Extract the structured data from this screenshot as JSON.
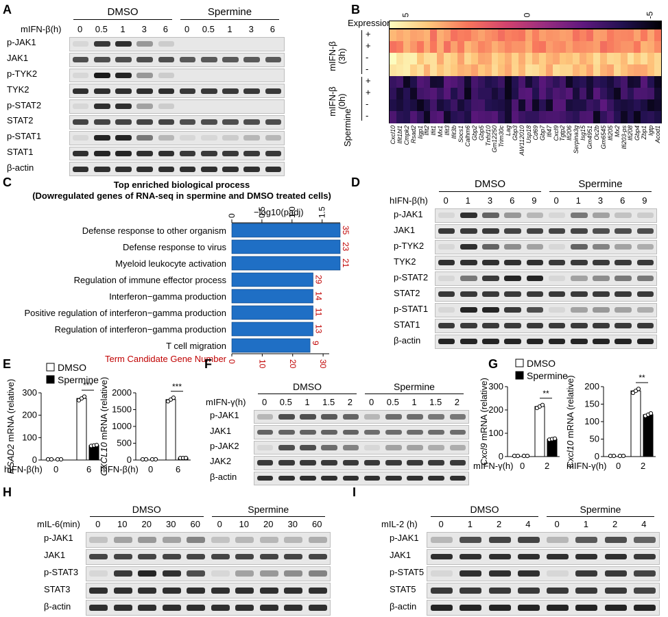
{
  "A": {
    "letter": "A",
    "treatment_label": "mIFN-β(h)",
    "groups": [
      "DMSO",
      "Spermine"
    ],
    "timepoints": [
      "0",
      "0.5",
      "1",
      "3",
      "6",
      "0",
      "0.5",
      "1",
      "3",
      "6"
    ],
    "rows": [
      {
        "label": "p-JAK1",
        "levels": [
          0.05,
          0.8,
          0.85,
          0.35,
          0.1,
          0,
          0,
          0,
          0,
          0
        ]
      },
      {
        "label": "JAK1",
        "levels": [
          0.7,
          0.7,
          0.7,
          0.7,
          0.7,
          0.65,
          0.65,
          0.65,
          0.65,
          0.65
        ]
      },
      {
        "label": "p-TYK2",
        "levels": [
          0.05,
          0.95,
          0.9,
          0.35,
          0.1,
          0,
          0,
          0,
          0,
          0
        ]
      },
      {
        "label": "TYK2",
        "levels": [
          0.85,
          0.85,
          0.85,
          0.85,
          0.85,
          0.8,
          0.8,
          0.8,
          0.8,
          0.8
        ]
      },
      {
        "label": "p-STAT2",
        "levels": [
          0.05,
          0.85,
          0.85,
          0.3,
          0.1,
          0,
          0,
          0,
          0,
          0
        ]
      },
      {
        "label": "STAT2",
        "levels": [
          0.75,
          0.75,
          0.75,
          0.75,
          0.75,
          0.7,
          0.7,
          0.7,
          0.7,
          0.7
        ]
      },
      {
        "label": "p-STAT1",
        "levels": [
          0.05,
          0.9,
          0.9,
          0.5,
          0.2,
          0.05,
          0.05,
          0.1,
          0.2,
          0.2
        ]
      },
      {
        "label": "STAT1",
        "levels": [
          0.85,
          0.9,
          0.9,
          0.85,
          0.85,
          0.8,
          0.8,
          0.8,
          0.8,
          0.8
        ]
      },
      {
        "label": "β-actin",
        "levels": [
          0.85,
          0.85,
          0.85,
          0.85,
          0.85,
          0.85,
          0.85,
          0.85,
          0.85,
          0.85
        ]
      }
    ]
  },
  "B": {
    "letter": "B",
    "legend_label": "Expression",
    "legend_ticks": [
      "5",
      "0",
      "-5"
    ],
    "row_group_labels": [
      "mIFN-β\n(3h)",
      "mIFN-β\n(0h)"
    ],
    "row_signs": [
      "+",
      "+",
      "-",
      "-",
      "+",
      "+",
      "-",
      "-"
    ],
    "column_group_label": "Spermine",
    "genes": [
      "Cxcl10",
      "Ifit1bl1",
      "Cmpk2",
      "Rsad2",
      "Iigp1",
      "Ifit2",
      "Ifit1",
      "Mx1",
      "Ifit3",
      "Ifit3b",
      "Socs1",
      "Calhm6",
      "Gbp2",
      "Gbp5",
      "Tnfsf10",
      "Gm12250",
      "Trim30c",
      "Lag",
      "Gbp3",
      "AW112010",
      "Usp18",
      "Cd69",
      "Gbp7",
      "Ifi47",
      "Cxcl9",
      "Tgtp2",
      "Ifi206",
      "Serpina3g",
      "Isg15",
      "Gm4951",
      "Oc2b",
      "Gm6545",
      "Ifi205",
      "Mx2",
      "Ifi203-ps",
      "Ifi208",
      "Gbp4",
      "Zbp1",
      "Igtp",
      "Acod1"
    ]
  },
  "C": {
    "letter": "C",
    "title_line1": "Top enriched biological process",
    "title_line2": "(Dowregulated genes of RNA-seq in spermine and DMSO treated cells)",
    "top_axis_label": "−log10(padj)",
    "top_ticks": [
      "0",
      "0.5",
      "1.0",
      "1.5"
    ],
    "bottom_axis_label": "Term Candidate Gene Number",
    "bottom_ticks": [
      "0",
      "10",
      "20",
      "30"
    ],
    "bar_color": "#1f6fc5",
    "count_color": "#c00000"
  },
  "chart_data": {
    "type": "bar",
    "orientation": "horizontal",
    "categories": [
      "Defense response to other organism",
      "Defense response to virus",
      "Myeloid leukocyte activation",
      "Regulation of immune effector process",
      "Interferon−gamma production",
      "Positive regulation of interferon−gamma production",
      "Regulation of interferon−gamma production",
      "T cell migration"
    ],
    "series": [
      {
        "name": "−log10(padj)",
        "values": [
          1.8,
          1.8,
          1.8,
          1.35,
          1.35,
          1.35,
          1.35,
          1.3
        ]
      },
      {
        "name": "Term Candidate Gene Number",
        "values": [
          35,
          23,
          21,
          29,
          14,
          11,
          13,
          9
        ]
      }
    ],
    "title": "Top enriched biological process",
    "subtitle": "(Dowregulated genes of RNA-seq in spermine and DMSO treated cells)",
    "xlim_top": [
      0,
      1.8
    ],
    "xlim_bottom": [
      0,
      35
    ]
  },
  "D": {
    "letter": "D",
    "treatment_label": "hIFN-β(h)",
    "groups": [
      "DMSO",
      "Spermine"
    ],
    "timepoints": [
      "0",
      "1",
      "3",
      "6",
      "9",
      "0",
      "1",
      "3",
      "6",
      "9"
    ],
    "rows": [
      {
        "label": "p-JAK1",
        "levels": [
          0.05,
          0.85,
          0.6,
          0.35,
          0.2,
          0.05,
          0.5,
          0.3,
          0.15,
          0.1
        ]
      },
      {
        "label": "JAK1",
        "levels": [
          0.8,
          0.8,
          0.8,
          0.75,
          0.75,
          0.75,
          0.75,
          0.7,
          0.7,
          0.7
        ]
      },
      {
        "label": "p-TYK2",
        "levels": [
          0.05,
          0.85,
          0.6,
          0.4,
          0.3,
          0.05,
          0.6,
          0.45,
          0.3,
          0.25
        ]
      },
      {
        "label": "TYK2",
        "levels": [
          0.85,
          0.85,
          0.85,
          0.85,
          0.85,
          0.8,
          0.8,
          0.8,
          0.8,
          0.8
        ]
      },
      {
        "label": "p-STAT2",
        "levels": [
          0.05,
          0.5,
          0.8,
          0.9,
          0.9,
          0.05,
          0.3,
          0.4,
          0.5,
          0.5
        ]
      },
      {
        "label": "STAT2",
        "levels": [
          0.8,
          0.8,
          0.8,
          0.8,
          0.8,
          0.8,
          0.8,
          0.8,
          0.8,
          0.8
        ]
      },
      {
        "label": "p-STAT1",
        "levels": [
          0.05,
          0.9,
          0.9,
          0.8,
          0.7,
          0.05,
          0.3,
          0.35,
          0.3,
          0.25
        ]
      },
      {
        "label": "STAT1",
        "levels": [
          0.8,
          0.8,
          0.8,
          0.8,
          0.8,
          0.8,
          0.8,
          0.8,
          0.8,
          0.8
        ]
      },
      {
        "label": "β-actin",
        "levels": [
          0.9,
          0.9,
          0.9,
          0.9,
          0.9,
          0.9,
          0.9,
          0.9,
          0.9,
          0.9
        ]
      }
    ]
  },
  "E": {
    "letter": "E",
    "legend": [
      "DMSO",
      "Spermine"
    ],
    "treatment_label": "hIFN-β(h)",
    "x_ticks": [
      "0",
      "6"
    ],
    "sig": "***",
    "chart1": {
      "ylabel_gene": "RSAD2",
      "ylabel_rest": " mRNA (relative)",
      "ticks": [
        "0",
        "100",
        "200",
        "300"
      ],
      "values": {
        "dmso_0": 1,
        "sp_0": 1,
        "dmso_6": 275,
        "sp_6": 65
      },
      "ymax": 300
    },
    "chart2": {
      "ylabel_gene": "CXCL10",
      "ylabel_rest": " mRNA (relative)",
      "ticks": [
        "0",
        "500",
        "1000",
        "1500",
        "2000"
      ],
      "values": {
        "dmso_0": 5,
        "sp_0": 5,
        "dmso_6": 1800,
        "sp_6": 60
      },
      "ymax": 2000
    }
  },
  "F": {
    "letter": "F",
    "treatment_label": "mIFN-γ(h)",
    "groups": [
      "DMSO",
      "Spermine"
    ],
    "timepoints": [
      "0",
      "0.5",
      "1",
      "1.5",
      "2",
      "0",
      "0.5",
      "1",
      "1.5",
      "2"
    ],
    "rows": [
      {
        "label": "p-JAK1",
        "levels": [
          0.2,
          0.7,
          0.7,
          0.65,
          0.6,
          0.2,
          0.55,
          0.55,
          0.5,
          0.5
        ]
      },
      {
        "label": "JAK1",
        "levels": [
          0.6,
          0.6,
          0.6,
          0.6,
          0.6,
          0.55,
          0.55,
          0.55,
          0.55,
          0.55
        ]
      },
      {
        "label": "p-JAK2",
        "levels": [
          0.05,
          0.7,
          0.7,
          0.55,
          0.45,
          0.05,
          0.3,
          0.3,
          0.25,
          0.25
        ]
      },
      {
        "label": "JAK2",
        "levels": [
          0.8,
          0.8,
          0.8,
          0.8,
          0.8,
          0.8,
          0.8,
          0.8,
          0.8,
          0.8
        ]
      },
      {
        "label": "β-actin",
        "levels": [
          0.85,
          0.85,
          0.85,
          0.85,
          0.85,
          0.85,
          0.85,
          0.85,
          0.85,
          0.85
        ]
      }
    ]
  },
  "G": {
    "letter": "G",
    "legend": [
      "DMSO",
      "Spermine"
    ],
    "treatment_label": "mIFN-γ(h)",
    "x_ticks": [
      "0",
      "2"
    ],
    "sig": "**",
    "chart1": {
      "ylabel_gene": "Cxcl9",
      "ylabel_rest": " mRNA (relative)",
      "ticks": [
        "0",
        "100",
        "200",
        "300"
      ],
      "values": {
        "dmso_0": 1,
        "sp_0": 1,
        "dmso_2": 215,
        "sp_2": 75
      },
      "ymax": 300
    },
    "chart2": {
      "ylabel_gene": "Cxcl10",
      "ylabel_rest": " mRNA (relative)",
      "ticks": [
        "0",
        "50",
        "100",
        "150",
        "200"
      ],
      "values": {
        "dmso_0": 1,
        "sp_0": 1,
        "dmso_2": 188,
        "sp_2": 120
      },
      "ymax": 200
    }
  },
  "H": {
    "letter": "H",
    "treatment_label": "mIL-6(min)",
    "groups": [
      "DMSO",
      "Spermine"
    ],
    "timepoints": [
      "0",
      "10",
      "20",
      "30",
      "60",
      "0",
      "10",
      "20",
      "30",
      "60"
    ],
    "rows": [
      {
        "label": "p-JAK1",
        "levels": [
          0.15,
          0.3,
          0.35,
          0.3,
          0.45,
          0.15,
          0.2,
          0.2,
          0.2,
          0.25
        ]
      },
      {
        "label": "JAK1",
        "levels": [
          0.75,
          0.75,
          0.75,
          0.75,
          0.75,
          0.75,
          0.75,
          0.75,
          0.75,
          0.75
        ]
      },
      {
        "label": "p-STAT3",
        "levels": [
          0.05,
          0.8,
          0.9,
          0.85,
          0.7,
          0.05,
          0.3,
          0.35,
          0.4,
          0.45
        ]
      },
      {
        "label": "STAT3",
        "levels": [
          0.85,
          0.85,
          0.85,
          0.85,
          0.85,
          0.85,
          0.85,
          0.85,
          0.85,
          0.85
        ]
      },
      {
        "label": "β-actin",
        "levels": [
          0.85,
          0.85,
          0.85,
          0.85,
          0.85,
          0.85,
          0.85,
          0.85,
          0.85,
          0.85
        ]
      }
    ]
  },
  "I": {
    "letter": "I",
    "treatment_label": "mIL-2 (h)",
    "groups": [
      "DMSO",
      "Spermine"
    ],
    "timepoints": [
      "0",
      "1",
      "2",
      "4",
      "0",
      "1",
      "2",
      "4"
    ],
    "rows": [
      {
        "label": "p-JAK1",
        "levels": [
          0.2,
          0.7,
          0.75,
          0.75,
          0.2,
          0.65,
          0.7,
          0.6
        ]
      },
      {
        "label": "JAK1",
        "levels": [
          0.85,
          0.85,
          0.85,
          0.85,
          0.85,
          0.85,
          0.85,
          0.8
        ]
      },
      {
        "label": "p-STAT5",
        "levels": [
          0.05,
          0.85,
          0.85,
          0.85,
          0.05,
          0.8,
          0.8,
          0.75
        ]
      },
      {
        "label": "STAT5",
        "levels": [
          0.8,
          0.8,
          0.8,
          0.8,
          0.8,
          0.8,
          0.8,
          0.75
        ]
      },
      {
        "label": "β-actin",
        "levels": [
          0.9,
          0.9,
          0.9,
          0.9,
          0.9,
          0.9,
          0.9,
          0.9
        ]
      }
    ]
  }
}
